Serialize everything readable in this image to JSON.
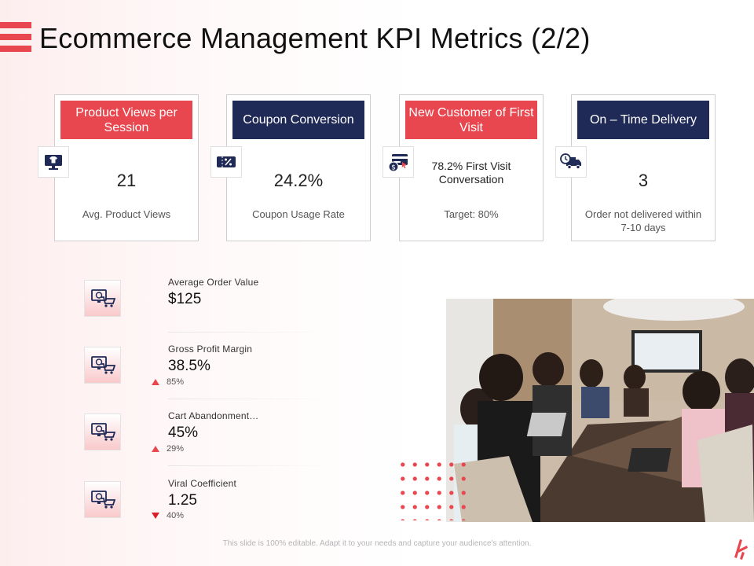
{
  "title": "Ecommerce Management KPI Metrics (2/2)",
  "colors": {
    "accent": "#e9474f",
    "navy": "#1f2a56"
  },
  "cards": [
    {
      "header": "Product Views per Session",
      "value": "21",
      "caption": "Avg. Product Views",
      "icon": "monitor-shirt-icon"
    },
    {
      "header": "Coupon Conversion",
      "value": "24.2%",
      "caption": "Coupon Usage Rate",
      "icon": "percent-tag-icon"
    },
    {
      "header": "New Customer of First Visit",
      "value": "78.2% First Visit Conversation",
      "caption": "Target: 80%",
      "icon": "card-payment-icon"
    },
    {
      "header": "On – Time Delivery",
      "value": "3",
      "caption": "Order not delivered within 7-10 days",
      "icon": "delivery-truck-icon"
    }
  ],
  "metrics": [
    {
      "label": "Average Order Value",
      "value": "$125",
      "delta": ""
    },
    {
      "label": "Gross Profit Margin",
      "value": "38.5%",
      "delta": "85%",
      "direction": "up"
    },
    {
      "label": "Cart Abandonment…",
      "value": "45%",
      "delta": "29%",
      "direction": "up"
    },
    {
      "label": "Viral Coefficient",
      "value": "1.25",
      "delta": "40%",
      "direction": "down"
    }
  ],
  "footer": "This slide is 100% editable. Adapt it to your needs and capture your audience's attention."
}
